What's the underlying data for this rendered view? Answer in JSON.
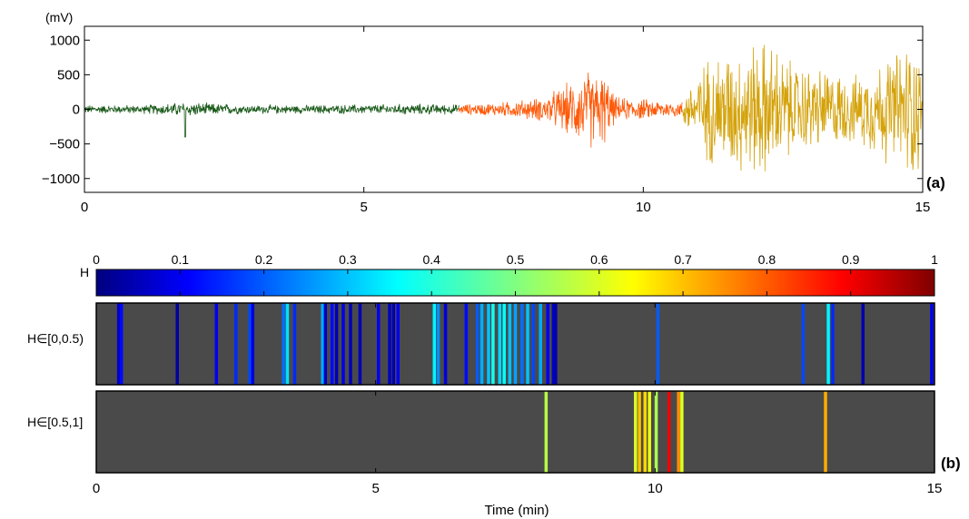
{
  "chart_data": [
    {
      "panel_label": "(a)",
      "type": "line",
      "unit_label": "(mV)",
      "xlabel": "",
      "ylabel": "",
      "xlim": [
        0,
        15
      ],
      "ylim": [
        -1200,
        1200
      ],
      "xticks": [
        "0",
        "5",
        "10",
        "15"
      ],
      "yticks": [
        "1000",
        "500",
        "0",
        "−500",
        "−1000"
      ],
      "series": [
        {
          "segment_x_range": [
            0,
            6.7
          ],
          "color": "#1a5a1a",
          "envelope_x": [
            0,
            1,
            1.8,
            3,
            4,
            5,
            6,
            6.7
          ],
          "envelope_amp": [
            70,
            70,
            120,
            70,
            70,
            80,
            90,
            80
          ]
        },
        {
          "segment_x_range": [
            6.7,
            10.7
          ],
          "color": "#ff5a0a",
          "envelope_x": [
            6.7,
            7.5,
            8.2,
            8.7,
            9,
            9.3,
            9.5,
            10.3,
            10.7
          ],
          "envelope_amp": [
            80,
            120,
            200,
            450,
            650,
            600,
            200,
            150,
            130
          ]
        },
        {
          "segment_x_range": [
            10.7,
            15
          ],
          "color": "#d4a20a",
          "envelope_x": [
            10.7,
            11.2,
            11.8,
            12.2,
            12.7,
            13.3,
            13.8,
            14.4,
            14.9,
            15
          ],
          "envelope_amp": [
            250,
            900,
            1050,
            1150,
            750,
            650,
            550,
            900,
            1200,
            300
          ]
        }
      ]
    },
    {
      "panel_label": "(b)",
      "type": "heatmap",
      "xlabel": "Time (min)",
      "xlim": [
        0,
        15
      ],
      "xticks": [
        "0",
        "5",
        "10",
        "15"
      ],
      "colorbar": {
        "label": "H",
        "range": [
          0,
          1
        ],
        "ticks": [
          "0",
          "0.1",
          "0.2",
          "0.3",
          "0.4",
          "0.5",
          "0.6",
          "0.7",
          "0.8",
          "0.9",
          "1"
        ]
      },
      "rows": [
        {
          "label": "H∈[0,0.5)",
          "bands": [
            [
              0.4,
              0.06
            ],
            [
              0.45,
              0.12
            ],
            [
              1.45,
              0.03
            ],
            [
              2.15,
              0.1
            ],
            [
              2.5,
              0.15
            ],
            [
              2.75,
              0.18
            ],
            [
              2.8,
              0.08
            ],
            [
              3.35,
              0.22
            ],
            [
              3.42,
              0.33
            ],
            [
              3.55,
              0.15
            ],
            [
              4.05,
              0.28
            ],
            [
              4.1,
              0.06
            ],
            [
              4.22,
              0.12
            ],
            [
              4.3,
              0.05
            ],
            [
              4.42,
              0.09
            ],
            [
              4.55,
              0.05
            ],
            [
              4.72,
              0.05
            ],
            [
              5.05,
              0.1
            ],
            [
              5.25,
              0.06
            ],
            [
              5.32,
              0.04
            ],
            [
              5.4,
              0.1
            ],
            [
              6.05,
              0.35
            ],
            [
              6.12,
              0.25
            ],
            [
              6.25,
              0.08
            ],
            [
              6.62,
              0.12
            ],
            [
              6.82,
              0.2
            ],
            [
              6.9,
              0.28
            ],
            [
              7.02,
              0.3
            ],
            [
              7.1,
              0.38
            ],
            [
              7.22,
              0.32
            ],
            [
              7.3,
              0.36
            ],
            [
              7.4,
              0.3
            ],
            [
              7.5,
              0.27
            ],
            [
              7.62,
              0.22
            ],
            [
              7.72,
              0.3
            ],
            [
              7.82,
              0.18
            ],
            [
              7.95,
              0.28
            ],
            [
              8.08,
              0.1
            ],
            [
              8.18,
              0.06
            ],
            [
              8.22,
              0.04
            ],
            [
              10.05,
              0.2
            ],
            [
              12.65,
              0.18
            ],
            [
              13.1,
              0.35
            ],
            [
              13.18,
              0.15
            ],
            [
              13.72,
              0.04
            ],
            [
              14.95,
              0.1
            ]
          ]
        },
        {
          "label": "H∈[0.5,1]",
          "bands": [
            [
              8.05,
              0.56
            ],
            [
              9.65,
              0.6
            ],
            [
              9.72,
              0.7
            ],
            [
              9.82,
              0.68
            ],
            [
              9.9,
              0.62
            ],
            [
              10.02,
              0.55
            ],
            [
              10.25,
              0.9
            ],
            [
              10.42,
              0.75
            ],
            [
              10.48,
              0.6
            ],
            [
              13.05,
              0.72
            ]
          ]
        }
      ]
    }
  ]
}
